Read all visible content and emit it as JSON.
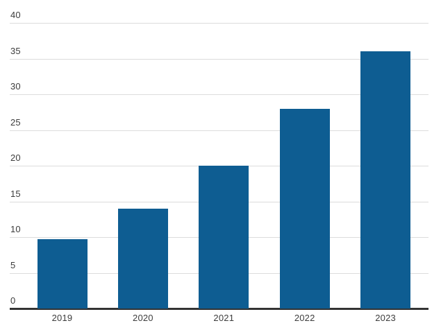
{
  "chart_data": {
    "type": "bar",
    "title": "",
    "xlabel": "",
    "ylabel": "",
    "categories": [
      "2019",
      "2020",
      "2021",
      "2022",
      "2023"
    ],
    "values": [
      9.7,
      14,
      20,
      28,
      36
    ],
    "ylim": [
      0,
      40
    ],
    "ytick_step": 5,
    "ytick_labels": [
      "0",
      "5",
      "10",
      "15",
      "20",
      "25",
      "30",
      "35",
      "40"
    ],
    "grid": true,
    "legend_position": "none",
    "colors": {
      "bar": "#0e5d92",
      "gridline": "#dcdcdc",
      "axis_line": "#333333",
      "tick_label": "#3c3c3c"
    }
  }
}
